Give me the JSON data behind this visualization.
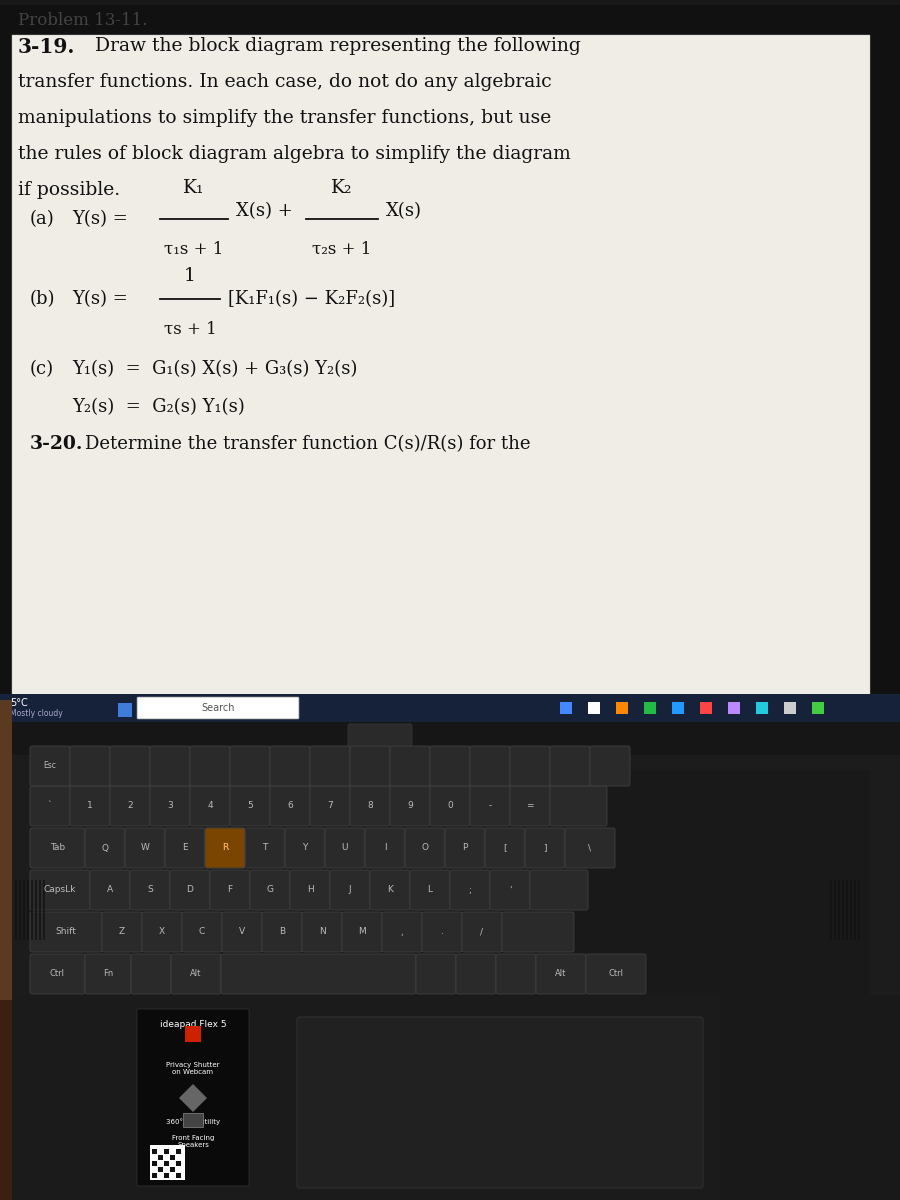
{
  "top_partial_text": "Problem 13-11.",
  "title_number": "3-19.",
  "title_line1": "Draw the block diagram representing the following",
  "title_line2": "transfer functions. In each case, do not do any algebraic",
  "title_line3": "manipulations to simplify the transfer functions, but use",
  "title_line4": "the rules of block diagram algebra to simplify the diagram",
  "title_line5": "if possible.",
  "eq_a_label": "(a)",
  "eq_a_lhs": "Y(s) =",
  "eq_a_frac1_num": "K₁",
  "eq_a_frac1_den": "τ₁s + 1",
  "eq_a_mid": "X(s) +",
  "eq_a_frac2_num": "K₂",
  "eq_a_frac2_den": "τ₂s + 1",
  "eq_a_rhs": "X(s)",
  "eq_b_label": "(b)",
  "eq_b_lhs": "Y(s) =",
  "eq_b_frac_num": "1",
  "eq_b_frac_den": "τs + 1",
  "eq_b_rhs": "[K₁F₁(s) − K₂F₂(s)]",
  "eq_c_label": "(c)",
  "eq_c_line1": "Y₁(s)  =  G₁(s) X(s) + G₃(s) Y₂(s)",
  "eq_c_line2": "Y₂(s)  =  G₂(s) Y₁(s)",
  "next_problem_num": "3-20.",
  "next_problem_text": "Determine the transfer function C(s)/R(s) for the",
  "weather_text": "5°C",
  "weather_sub": "Mostly cloudy",
  "search_text": "Search",
  "paper_bg": "#f0ede6",
  "paper_shadow": "#e0ddd6",
  "laptop_dark": "#1a1a1a",
  "kbd_bg": "#1e1e1e",
  "key_face": "#2d2d2d",
  "key_edge": "#3a3a3a",
  "key_text": "#cccccc",
  "taskbar_bg": "#1a2040",
  "screen_border": "#2a2a2a",
  "sticker_bg": "#111111",
  "touchpad_bg": "#222222",
  "palm_rest": "#1c1c1c"
}
